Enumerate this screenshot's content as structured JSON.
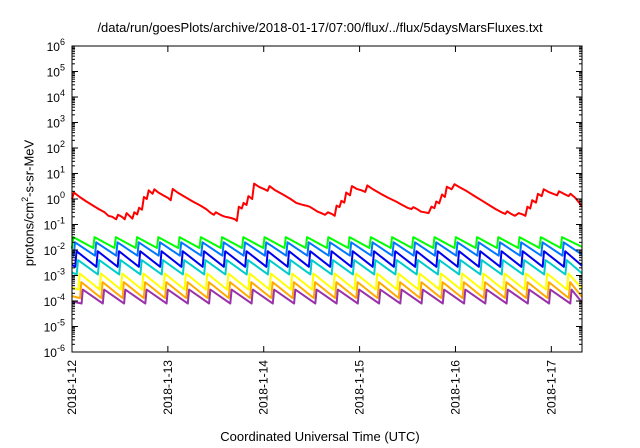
{
  "chart_data": {
    "type": "line",
    "title": "/data/run/goesPlots/archive/2018-01-17/07:00/flux/../flux/5daysMarsFluxes.txt",
    "xlabel": "Coordinated Universal Time (UTC)",
    "ylabel_parts": {
      "main": "protons/cm",
      "sup": "2",
      "rest": "-s-sr-MeV"
    },
    "yscale": "log",
    "ylim_exponents": [
      -6,
      6
    ],
    "y_tick_exponents": [
      -6,
      -5,
      -4,
      -3,
      -2,
      -1,
      0,
      1,
      2,
      3,
      4,
      5,
      6
    ],
    "y_tick_base": "10",
    "xlim_days": [
      0,
      5.32
    ],
    "x_ticks": [
      {
        "day": 0,
        "label": "2018-1-12"
      },
      {
        "day": 1,
        "label": "2018-1-13"
      },
      {
        "day": 2,
        "label": "2018-1-14"
      },
      {
        "day": 3,
        "label": "2018-1-15"
      },
      {
        "day": 4,
        "label": "2018-1-16"
      },
      {
        "day": 5,
        "label": "2018-1-17"
      }
    ],
    "grid": false,
    "legend": "none",
    "series": [
      {
        "color": "#ff0000",
        "points": [
          [
            0.0,
            1.0
          ],
          [
            0.02,
            1.8
          ],
          [
            0.08,
            1.2
          ],
          [
            0.15,
            0.8
          ],
          [
            0.22,
            0.55
          ],
          [
            0.28,
            0.4
          ],
          [
            0.34,
            0.3
          ],
          [
            0.38,
            0.22
          ],
          [
            0.42,
            0.2
          ],
          [
            0.46,
            0.16
          ],
          [
            0.48,
            0.24
          ],
          [
            0.52,
            0.2
          ],
          [
            0.55,
            0.16
          ],
          [
            0.57,
            0.28
          ],
          [
            0.6,
            0.22
          ],
          [
            0.63,
            0.17
          ],
          [
            0.65,
            0.3
          ],
          [
            0.68,
            0.25
          ],
          [
            0.7,
            0.45
          ],
          [
            0.73,
            0.38
          ],
          [
            0.75,
            1.2
          ],
          [
            0.78,
            1.0
          ],
          [
            0.8,
            2.2
          ],
          [
            0.84,
            1.6
          ],
          [
            0.86,
            2.4
          ],
          [
            0.9,
            1.8
          ],
          [
            0.95,
            1.4
          ],
          [
            1.0,
            1.1
          ],
          [
            1.03,
            0.9
          ],
          [
            1.05,
            2.5
          ],
          [
            1.1,
            1.8
          ],
          [
            1.18,
            1.2
          ],
          [
            1.26,
            0.8
          ],
          [
            1.34,
            0.55
          ],
          [
            1.4,
            0.4
          ],
          [
            1.45,
            0.28
          ],
          [
            1.48,
            0.24
          ],
          [
            1.5,
            0.3
          ],
          [
            1.54,
            0.25
          ],
          [
            1.57,
            0.22
          ],
          [
            1.6,
            0.2
          ],
          [
            1.63,
            0.19
          ],
          [
            1.66,
            0.18
          ],
          [
            1.7,
            0.16
          ],
          [
            1.72,
            0.14
          ],
          [
            1.74,
            0.5
          ],
          [
            1.77,
            0.42
          ],
          [
            1.79,
            0.7
          ],
          [
            1.82,
            0.58
          ],
          [
            1.84,
            1.3
          ],
          [
            1.88,
            1.0
          ],
          [
            1.9,
            4.0
          ],
          [
            1.95,
            3.0
          ],
          [
            2.0,
            2.5
          ],
          [
            2.04,
            2.1
          ],
          [
            2.06,
            3.2
          ],
          [
            2.12,
            2.2
          ],
          [
            2.2,
            1.5
          ],
          [
            2.28,
            1.0
          ],
          [
            2.34,
            0.7
          ],
          [
            2.4,
            0.6
          ],
          [
            2.44,
            0.55
          ],
          [
            2.48,
            0.5
          ],
          [
            2.52,
            0.4
          ],
          [
            2.56,
            0.32
          ],
          [
            2.6,
            0.28
          ],
          [
            2.64,
            0.24
          ],
          [
            2.67,
            0.3
          ],
          [
            2.71,
            0.26
          ],
          [
            2.74,
            0.22
          ],
          [
            2.76,
            0.55
          ],
          [
            2.79,
            0.48
          ],
          [
            2.81,
            0.85
          ],
          [
            2.84,
            0.72
          ],
          [
            2.86,
            1.8
          ],
          [
            2.9,
            1.4
          ],
          [
            2.92,
            3.2
          ],
          [
            2.97,
            2.5
          ],
          [
            3.02,
            2.2
          ],
          [
            3.06,
            1.9
          ],
          [
            3.08,
            3.4
          ],
          [
            3.14,
            2.4
          ],
          [
            3.22,
            1.6
          ],
          [
            3.3,
            1.1
          ],
          [
            3.38,
            0.8
          ],
          [
            3.44,
            0.6
          ],
          [
            3.5,
            0.45
          ],
          [
            3.54,
            0.4
          ],
          [
            3.56,
            0.48
          ],
          [
            3.6,
            0.4
          ],
          [
            3.64,
            0.32
          ],
          [
            3.68,
            0.3
          ],
          [
            3.72,
            0.28
          ],
          [
            3.75,
            0.5
          ],
          [
            3.78,
            0.44
          ],
          [
            3.8,
            0.8
          ],
          [
            3.83,
            0.68
          ],
          [
            3.86,
            1.5
          ],
          [
            3.89,
            1.2
          ],
          [
            3.91,
            3.0
          ],
          [
            3.96,
            2.4
          ],
          [
            3.99,
            3.8
          ],
          [
            4.05,
            2.8
          ],
          [
            4.12,
            2.0
          ],
          [
            4.2,
            1.3
          ],
          [
            4.28,
            0.85
          ],
          [
            4.36,
            0.55
          ],
          [
            4.42,
            0.4
          ],
          [
            4.48,
            0.3
          ],
          [
            4.52,
            0.26
          ],
          [
            4.54,
            0.33
          ],
          [
            4.58,
            0.26
          ],
          [
            4.62,
            0.22
          ],
          [
            4.66,
            0.28
          ],
          [
            4.7,
            0.25
          ],
          [
            4.73,
            0.22
          ],
          [
            4.75,
            0.5
          ],
          [
            4.78,
            0.42
          ],
          [
            4.8,
            0.9
          ],
          [
            4.84,
            0.72
          ],
          [
            4.86,
            1.6
          ],
          [
            4.9,
            1.3
          ],
          [
            4.92,
            2.4
          ],
          [
            4.97,
            1.9
          ],
          [
            5.02,
            1.6
          ],
          [
            5.06,
            1.4
          ],
          [
            5.08,
            2.0
          ],
          [
            5.13,
            1.6
          ],
          [
            5.18,
            1.3
          ],
          [
            5.2,
            1.6
          ],
          [
            5.25,
            1.1
          ],
          [
            5.28,
            0.8
          ],
          [
            5.3,
            0.65
          ],
          [
            5.32,
            0.5
          ]
        ]
      },
      {
        "color": "#00ff00",
        "sawtooth": {
          "peak": 0.032,
          "trough": 0.012,
          "cycles": 24,
          "phase": 0.0
        }
      },
      {
        "color": "#0077ff",
        "sawtooth": {
          "peak": 0.02,
          "trough": 0.006,
          "cycles": 24,
          "phase": 0.08
        }
      },
      {
        "color": "#0000ee",
        "sawtooth": {
          "peak": 0.009,
          "trough": 0.0022,
          "cycles": 24,
          "phase": 0.15
        }
      },
      {
        "color": "#00cccc",
        "sawtooth": {
          "peak": 0.004,
          "trough": 0.0011,
          "cycles": 24,
          "phase": 0.22
        }
      },
      {
        "color": "#ffff00",
        "sawtooth": {
          "peak": 0.0012,
          "trough": 0.00028,
          "cycles": 24,
          "phase": 0.3
        }
      },
      {
        "color": "#ffaa00",
        "sawtooth": {
          "peak": 0.00055,
          "trough": 0.00013,
          "cycles": 24,
          "phase": 0.38
        }
      },
      {
        "color": "#9933aa",
        "sawtooth": {
          "peak": 0.00028,
          "trough": 8e-05,
          "cycles": 24,
          "phase": 0.45
        }
      }
    ]
  }
}
